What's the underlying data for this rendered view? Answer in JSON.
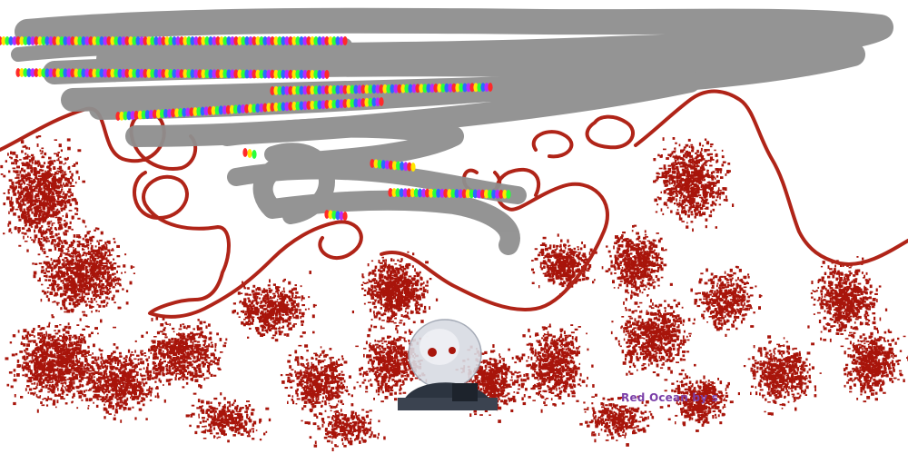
{
  "artwork": {
    "signature_text": "Red Ocean by s",
    "colors": {
      "background": "#ffffff",
      "red_speckle": "#a8150b",
      "red_stroke": "#b02418",
      "gray_smear": "#8f8f8f",
      "rainbow": [
        "#ff2a2a",
        "#ffe600",
        "#2aff3c",
        "#2a6bff",
        "#b62aff"
      ],
      "signature": "#7b3fa8",
      "figure_dark": "#2c3440",
      "figure_light": "#d8dbe3"
    },
    "elements": [
      "gray-scribble-cloud",
      "rainbow-brush-strokes",
      "red-curly-line",
      "red-speckle-field",
      "chibi-figure"
    ]
  }
}
